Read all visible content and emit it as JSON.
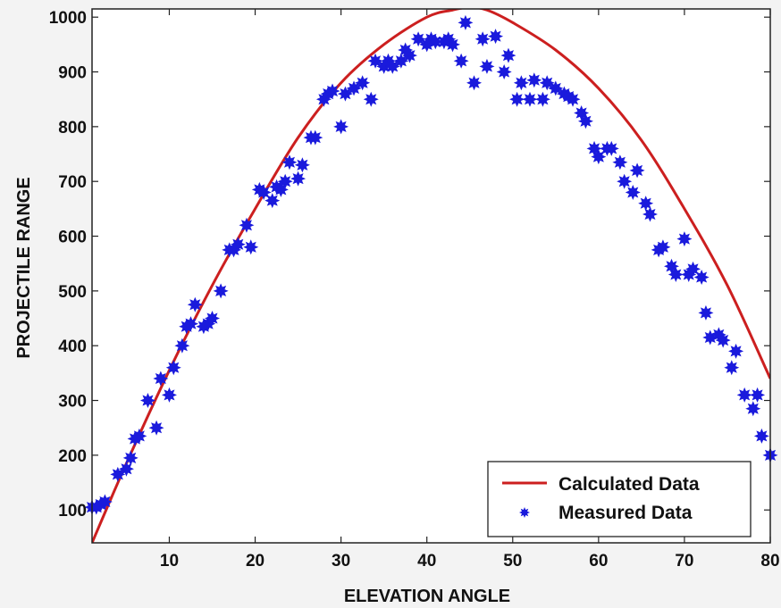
{
  "chart_data": {
    "type": "scatter",
    "title": "",
    "xlabel": "ELEVATION ANGLE",
    "ylabel": "PROJECTILE RANGE",
    "xlim": [
      1,
      80
    ],
    "ylim": [
      40,
      1015
    ],
    "xticks": [
      10,
      20,
      30,
      40,
      50,
      60,
      70,
      80
    ],
    "yticks": [
      100,
      200,
      300,
      400,
      500,
      600,
      700,
      800,
      900,
      1000
    ],
    "grid": false,
    "legend_position": "bottom-right",
    "series": [
      {
        "name": "Calculated Data",
        "kind": "line",
        "color": "#cc1f1f",
        "x": [
          1,
          5,
          10,
          15,
          20,
          25,
          30,
          35,
          40,
          43,
          45,
          47,
          50,
          55,
          60,
          65,
          70,
          75,
          80
        ],
        "y": [
          40,
          185,
          355,
          510,
          650,
          780,
          880,
          950,
          1000,
          1013,
          1018,
          1013,
          990,
          940,
          870,
          775,
          650,
          510,
          340
        ]
      },
      {
        "name": "Measured Data",
        "kind": "scatter",
        "color": "#1a1adc",
        "x": [
          1,
          1.5,
          2,
          2.5,
          4,
          5,
          5.5,
          6,
          6.5,
          7.5,
          8.5,
          9,
          10,
          10.5,
          11.5,
          12,
          12.5,
          13,
          14,
          14.5,
          15,
          16,
          17,
          17.5,
          18,
          19,
          19.5,
          20.5,
          21,
          22,
          22.5,
          23,
          23.5,
          24,
          25,
          25.5,
          26.5,
          27,
          28,
          28.5,
          29,
          30,
          30.5,
          31.5,
          32.5,
          33.5,
          34,
          35,
          35.5,
          36,
          37,
          37.5,
          38,
          39,
          40,
          40.5,
          41,
          42,
          42.5,
          43,
          44,
          44.5,
          45.5,
          46.5,
          47,
          48,
          49,
          49.5,
          50.5,
          51,
          52,
          52.5,
          53.5,
          54,
          55,
          56,
          56.5,
          57,
          58,
          58.5,
          59.5,
          60,
          61,
          61.5,
          62.5,
          63,
          64,
          64.5,
          65.5,
          66,
          67,
          67.5,
          68.5,
          69,
          70,
          70.5,
          71,
          72,
          72.5,
          73,
          74,
          74.5,
          75.5,
          76,
          77,
          78,
          78.5,
          79,
          80
        ],
        "y": [
          105,
          105,
          110,
          115,
          165,
          175,
          195,
          230,
          235,
          300,
          250,
          340,
          310,
          360,
          400,
          435,
          440,
          475,
          435,
          440,
          450,
          500,
          575,
          575,
          585,
          620,
          580,
          685,
          680,
          665,
          690,
          685,
          700,
          735,
          705,
          730,
          780,
          780,
          850,
          860,
          865,
          800,
          860,
          870,
          880,
          850,
          920,
          910,
          920,
          910,
          920,
          940,
          930,
          960,
          950,
          960,
          955,
          955,
          960,
          950,
          920,
          990,
          880,
          960,
          910,
          965,
          900,
          930,
          850,
          880,
          850,
          885,
          850,
          880,
          870,
          860,
          855,
          850,
          825,
          810,
          760,
          745,
          760,
          760,
          735,
          700,
          680,
          720,
          660,
          640,
          575,
          580,
          545,
          530,
          595,
          530,
          540,
          525,
          460,
          415,
          420,
          410,
          360,
          390,
          310,
          285,
          310,
          235,
          200
        ]
      }
    ]
  }
}
